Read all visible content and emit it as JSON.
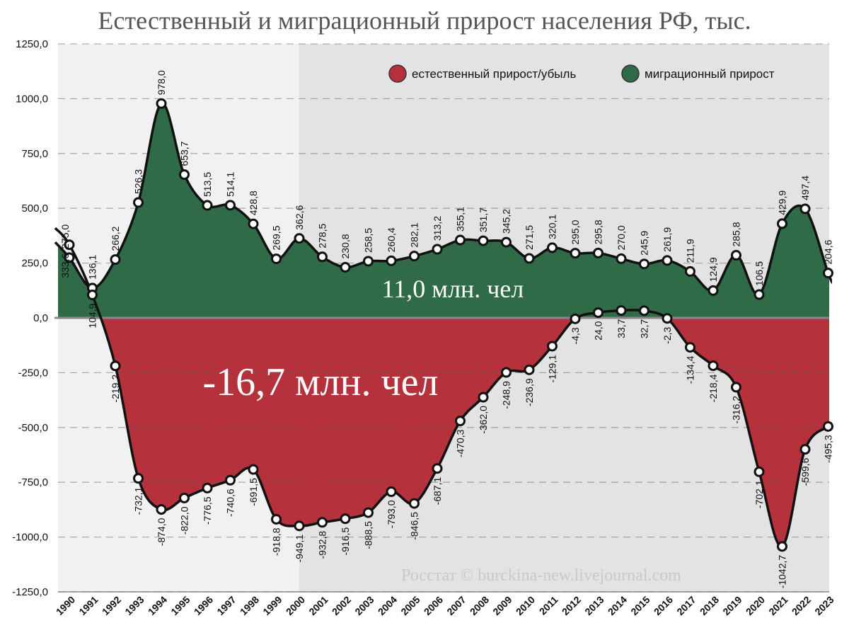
{
  "chart_data": {
    "type": "area",
    "title": "Естественный и миграционный прирост населения РФ, тыс.",
    "categories": [
      "1990",
      "1991",
      "1992",
      "1993",
      "1994",
      "1995",
      "1996",
      "1997",
      "1998",
      "1999",
      "2000",
      "2001",
      "2002",
      "2003",
      "2004",
      "2005",
      "2006",
      "2007",
      "2008",
      "2009",
      "2010",
      "2011",
      "2012",
      "2013",
      "2014",
      "2015",
      "2016",
      "2017",
      "2018",
      "2019",
      "2020",
      "2021",
      "2022",
      "2023"
    ],
    "series": [
      {
        "name": "естественный прирост/убыль",
        "color": "#b5313b",
        "values": [
          333.6,
          104.9,
          -219.2,
          -732.1,
          -874.0,
          -822.0,
          -776.5,
          -740.6,
          -691.5,
          -918.8,
          -949.1,
          -932.8,
          -916.5,
          -888.5,
          -793.0,
          -846.5,
          -687.1,
          -470.3,
          -362.0,
          -248.9,
          -236.9,
          -129.1,
          -4.3,
          24.0,
          33.7,
          32.7,
          -2.3,
          -134.4,
          -218.4,
          -316.2,
          -702.1,
          -1042.7,
          -599.6,
          -495.3
        ],
        "labels": [
          "333,6",
          "104,9",
          "-219,2",
          "-732,1",
          "-874,0",
          "-822,0",
          "-776,5",
          "-740,6",
          "-691,5",
          "-918,8",
          "-949,1",
          "-932,8",
          "-916,5",
          "-888,5",
          "-793,0",
          "-846,5",
          "-687,1",
          "-470,3",
          "-362,0",
          "-248,9",
          "-236,9",
          "-129,1",
          "-4,3",
          "24,0",
          "33,7",
          "32,7",
          "-2,3",
          "-134,4",
          "-218,4",
          "-316,2",
          "-702,1",
          "-1042,7",
          "-599,6",
          "-495,3"
        ]
      },
      {
        "name": "миграционный прирост",
        "color": "#2e6b46",
        "values": [
          275.0,
          136.1,
          266.2,
          526.3,
          978.0,
          653.7,
          513.5,
          514.1,
          428.8,
          269.5,
          362.6,
          278.5,
          230.8,
          258.5,
          260.4,
          282.1,
          313.2,
          355.1,
          351.7,
          345.2,
          271.5,
          320.1,
          295.0,
          295.8,
          270.0,
          245.9,
          261.9,
          211.9,
          124.9,
          285.8,
          106.5,
          429.9,
          497.4,
          204.6
        ],
        "labels": [
          "275,0",
          "136,1",
          "266,2",
          "526,3",
          "978,0",
          "653,7",
          "513,5",
          "514,1",
          "428,8",
          "269,5",
          "362,6",
          "278,5",
          "230,8",
          "258,5",
          "260,4",
          "282,1",
          "313,2",
          "355,1",
          "351,7",
          "345,2",
          "271,5",
          "320,1",
          "295,0",
          "295,8",
          "270,0",
          "245,9",
          "261,9",
          "211,9",
          "124,9",
          "285,8",
          "106,5",
          "429,9",
          "497,4",
          "204,6"
        ]
      }
    ],
    "ylim": [
      -1250,
      1250
    ],
    "yticks": [
      "1250,0",
      "1000,0",
      "750,0",
      "500,0",
      "250,0",
      "0,0",
      "-250,0",
      "-500,0",
      "-750,0",
      "-1000,0",
      "-1250,0"
    ],
    "ytick_values": [
      1250,
      1000,
      750,
      500,
      250,
      0,
      -250,
      -500,
      -750,
      -1000,
      -1250
    ],
    "grid": "dashed horizontal",
    "legend_position": "top-right",
    "annotations": {
      "migration_total": "11,0 млн. чел",
      "natural_total": "-16,7 млн. чел"
    },
    "source": "Росстат © burckina-new.livejournal.com"
  }
}
